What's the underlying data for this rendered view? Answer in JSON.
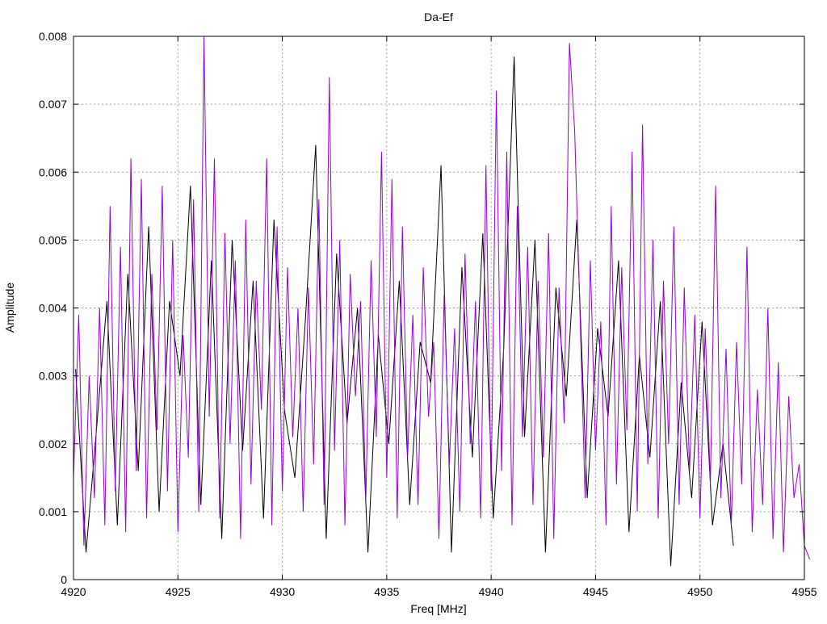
{
  "chart_data": {
    "type": "line",
    "title": "Da-Ef",
    "xlabel": "Freq [MHz]",
    "ylabel": "Amplitude",
    "xlim": [
      4920,
      4955
    ],
    "ylim": [
      0,
      0.008
    ],
    "grid": true,
    "legend": "none",
    "x_ticks": [
      "4920",
      "4925",
      "4930",
      "4935",
      "4940",
      "4945",
      "4950",
      "4955"
    ],
    "y_ticks": [
      "0",
      "0.001",
      "0.002",
      "0.003",
      "0.004",
      "0.005",
      "0.006",
      "0.007",
      "0.008"
    ],
    "series": [
      {
        "name": "series-black",
        "color": "#000000",
        "x_start": 4920.1,
        "x_step": 0.5,
        "values": [
          0.0031,
          0.0004,
          0.0022,
          0.0041,
          0.0008,
          0.0045,
          0.0016,
          0.0052,
          0.001,
          0.0041,
          0.003,
          0.0058,
          0.0011,
          0.0047,
          0.0006,
          0.005,
          0.0019,
          0.0044,
          0.0009,
          0.0053,
          0.0025,
          0.0015,
          0.0038,
          0.0064,
          0.0006,
          0.0048,
          0.0023,
          0.004,
          0.0004,
          0.0036,
          0.002,
          0.0044,
          0.0011,
          0.0035,
          0.0029,
          0.0061,
          0.0004,
          0.0046,
          0.0018,
          0.0051,
          0.0009,
          0.0034,
          0.0077,
          0.0021,
          0.005,
          0.0004,
          0.0043,
          0.0027,
          0.0053,
          0.0012,
          0.0037,
          0.0024,
          0.0047,
          0.0007,
          0.0033,
          0.0018,
          0.0041,
          0.0002,
          0.0029,
          0.0012,
          0.0038,
          0.0008,
          0.002,
          0.0005
        ]
      },
      {
        "name": "series-purple",
        "color": "#9400d3",
        "x_start": 4920,
        "x_step": 0.25,
        "values": [
          0.0015,
          0.0039,
          0.0005,
          0.003,
          0.0012,
          0.004,
          0.0008,
          0.0055,
          0.0013,
          0.0049,
          0.0007,
          0.0062,
          0.0016,
          0.0059,
          0.0009,
          0.0045,
          0.0022,
          0.0058,
          0.0013,
          0.005,
          0.0007,
          0.0036,
          0.0018,
          0.0056,
          0.001,
          0.008,
          0.0024,
          0.0062,
          0.0009,
          0.0051,
          0.002,
          0.0047,
          0.0006,
          0.0053,
          0.0014,
          0.0044,
          0.0025,
          0.0062,
          0.0008,
          0.0052,
          0.0013,
          0.0046,
          0.0021,
          0.004,
          0.001,
          0.0043,
          0.0017,
          0.0056,
          0.0011,
          0.0074,
          0.0019,
          0.005,
          0.0008,
          0.0045,
          0.0027,
          0.0041,
          0.0012,
          0.0047,
          0.0021,
          0.0063,
          0.0015,
          0.0059,
          0.0009,
          0.0052,
          0.0018,
          0.0039,
          0.0011,
          0.0046,
          0.0024,
          0.0035,
          0.0006,
          0.0042,
          0.0017,
          0.0037,
          0.001,
          0.0048,
          0.002,
          0.0041,
          0.0009,
          0.0061,
          0.0013,
          0.0072,
          0.0016,
          0.0063,
          0.0008,
          0.0055,
          0.0021,
          0.0049,
          0.0011,
          0.0044,
          0.0018,
          0.0051,
          0.0006,
          0.0043,
          0.0023,
          0.0079,
          0.0066,
          0.004,
          0.0012,
          0.0047,
          0.0019,
          0.0038,
          0.0008,
          0.0055,
          0.0014,
          0.0046,
          0.0022,
          0.0063,
          0.001,
          0.0067,
          0.0017,
          0.005,
          0.0009,
          0.0044,
          0.002,
          0.0052,
          0.0011,
          0.0043,
          0.0016,
          0.0039,
          0.0009,
          0.0037,
          0.0014,
          0.0058,
          0.0012,
          0.0034,
          0.0008,
          0.0035,
          0.0014,
          0.0049,
          0.0007,
          0.0028,
          0.0011,
          0.004,
          0.0006,
          0.0032,
          0.0004,
          0.0027,
          0.0012,
          0.0017,
          0.0005,
          0.0003
        ]
      }
    ]
  }
}
